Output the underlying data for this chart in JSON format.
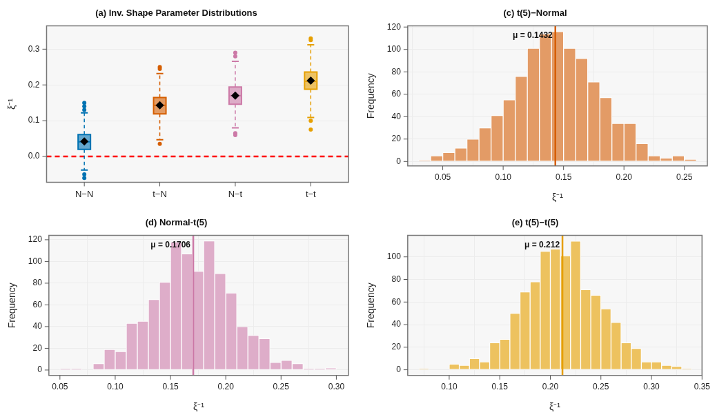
{
  "chart_data": [
    {
      "type": "box",
      "title": "(a) Inv. Shape Parameter Distributions",
      "ylabel": "ξ⁻¹",
      "categories": [
        "N−N",
        "t−N",
        "N−t",
        "t−t"
      ],
      "colors": [
        "#0072b2",
        "#d55e00",
        "#cc79a7",
        "#e69f00"
      ],
      "boxes": [
        {
          "low": -0.038,
          "q1": 0.02,
          "median": 0.041,
          "q3": 0.061,
          "high": 0.122,
          "mean": 0.042,
          "outliers": [
            0.13,
            0.14,
            0.15,
            -0.05,
            -0.06
          ]
        },
        {
          "low": 0.047,
          "q1": 0.119,
          "median": 0.143,
          "q3": 0.165,
          "high": 0.232,
          "mean": 0.143,
          "outliers": [
            0.035,
            0.245,
            0.25
          ]
        },
        {
          "low": 0.08,
          "q1": 0.146,
          "median": 0.17,
          "q3": 0.194,
          "high": 0.266,
          "mean": 0.17,
          "outliers": [
            0.06,
            0.065,
            0.28,
            0.29
          ]
        },
        {
          "low": 0.109,
          "q1": 0.188,
          "median": 0.21,
          "q3": 0.236,
          "high": 0.312,
          "mean": 0.212,
          "outliers": [
            0.075,
            0.1,
            0.325,
            0.33
          ]
        }
      ],
      "ylim": [
        -0.072,
        0.365
      ],
      "yticks": [
        {
          "value": 0,
          "label": "0.0"
        },
        0.1,
        0.2,
        0.3
      ],
      "grid": true,
      "ref_lines": [
        {
          "axis": "y",
          "value": 0,
          "color": "#ff0000",
          "line_style": "dashed"
        }
      ]
    },
    {
      "type": "histogram",
      "title": "(c) t(5)−Normal",
      "xlabel": "ξ⁻¹",
      "ylabel": "Frequency",
      "color": "#e39b66",
      "bins": [
        0.03,
        0.04,
        0.05,
        0.06,
        0.07,
        0.08,
        0.09,
        0.1,
        0.11,
        0.12,
        0.13,
        0.14,
        0.15,
        0.16,
        0.17,
        0.18,
        0.19,
        0.2,
        0.21,
        0.22,
        0.23,
        0.24,
        0.25,
        0.26
      ],
      "values": [
        1,
        5,
        8,
        12,
        20,
        30,
        41,
        55,
        76,
        101,
        114,
        116,
        101,
        92,
        71,
        57,
        34,
        34,
        16,
        5,
        3,
        5,
        2
      ],
      "xlim": [
        0.021,
        0.269
      ],
      "xticks": [
        0.05,
        {
          "value": 0.1,
          "label": "0.10"
        },
        0.15,
        {
          "value": 0.2,
          "label": "0.20"
        },
        0.25
      ],
      "ylim": [
        -4,
        121
      ],
      "yticks": [
        0,
        20,
        40,
        60,
        80,
        100,
        120
      ],
      "grid": true,
      "ref_lines": [
        {
          "axis": "x",
          "value": 0.1432,
          "label": "μ = 0.1432",
          "color": "#d55e00"
        }
      ]
    },
    {
      "type": "histogram",
      "title": "(d) Normal-t(5)",
      "xlabel": "ξ⁻¹",
      "ylabel": "Frequency",
      "color": "#deadc9",
      "bins": [
        0.05,
        0.06,
        0.07,
        0.08,
        0.09,
        0.1,
        0.11,
        0.12,
        0.13,
        0.14,
        0.15,
        0.16,
        0.17,
        0.18,
        0.19,
        0.2,
        0.21,
        0.22,
        0.23,
        0.24,
        0.25,
        0.26,
        0.27,
        0.28,
        0.29,
        0.3
      ],
      "values": [
        1,
        1,
        0,
        6,
        19,
        17,
        43,
        45,
        65,
        81,
        118,
        107,
        91,
        119,
        89,
        71,
        40,
        32,
        29,
        7,
        9,
        6,
        1,
        1,
        2
      ],
      "xlim": [
        0.04,
        0.311
      ],
      "xticks": [
        0.05,
        {
          "value": 0.1,
          "label": "0.10"
        },
        0.15,
        {
          "value": 0.2,
          "label": "0.20"
        },
        0.25,
        {
          "value": 0.3,
          "label": "0.30"
        }
      ],
      "ylim": [
        -5,
        124
      ],
      "yticks": [
        0,
        20,
        40,
        60,
        80,
        100,
        120
      ],
      "grid": true,
      "ref_lines": [
        {
          "axis": "x",
          "value": 0.1706,
          "label": "μ = 0.1706",
          "color": "#cc79a7"
        }
      ]
    },
    {
      "type": "histogram",
      "title": "(e) t(5)−t(5)",
      "xlabel": "ξ⁻¹",
      "ylabel": "Frequency",
      "color": "#edc25f",
      "bins": [
        0.07,
        0.08,
        0.09,
        0.1,
        0.11,
        0.12,
        0.13,
        0.14,
        0.15,
        0.16,
        0.17,
        0.18,
        0.19,
        0.2,
        0.21,
        0.22,
        0.23,
        0.24,
        0.25,
        0.26,
        0.27,
        0.28,
        0.29,
        0.3,
        0.31,
        0.32,
        0.33,
        0.34
      ],
      "values": [
        1,
        0,
        0,
        5,
        4,
        10,
        7,
        24,
        27,
        50,
        69,
        78,
        105,
        107,
        101,
        114,
        71,
        66,
        54,
        42,
        24,
        19,
        7,
        7,
        4,
        3,
        1
      ],
      "xlim": [
        0.059,
        0.35
      ],
      "xticks": [
        {
          "value": 0.1,
          "label": "0.10"
        },
        0.15,
        {
          "value": 0.2,
          "label": "0.20"
        },
        0.25,
        {
          "value": 0.3,
          "label": "0.30"
        },
        0.35
      ],
      "ylim": [
        -5,
        119
      ],
      "yticks": [
        0,
        20,
        40,
        60,
        80,
        100
      ],
      "grid": true,
      "ref_lines": [
        {
          "axis": "x",
          "value": 0.212,
          "label": "μ = 0.212",
          "color": "#e69f00"
        }
      ]
    }
  ]
}
